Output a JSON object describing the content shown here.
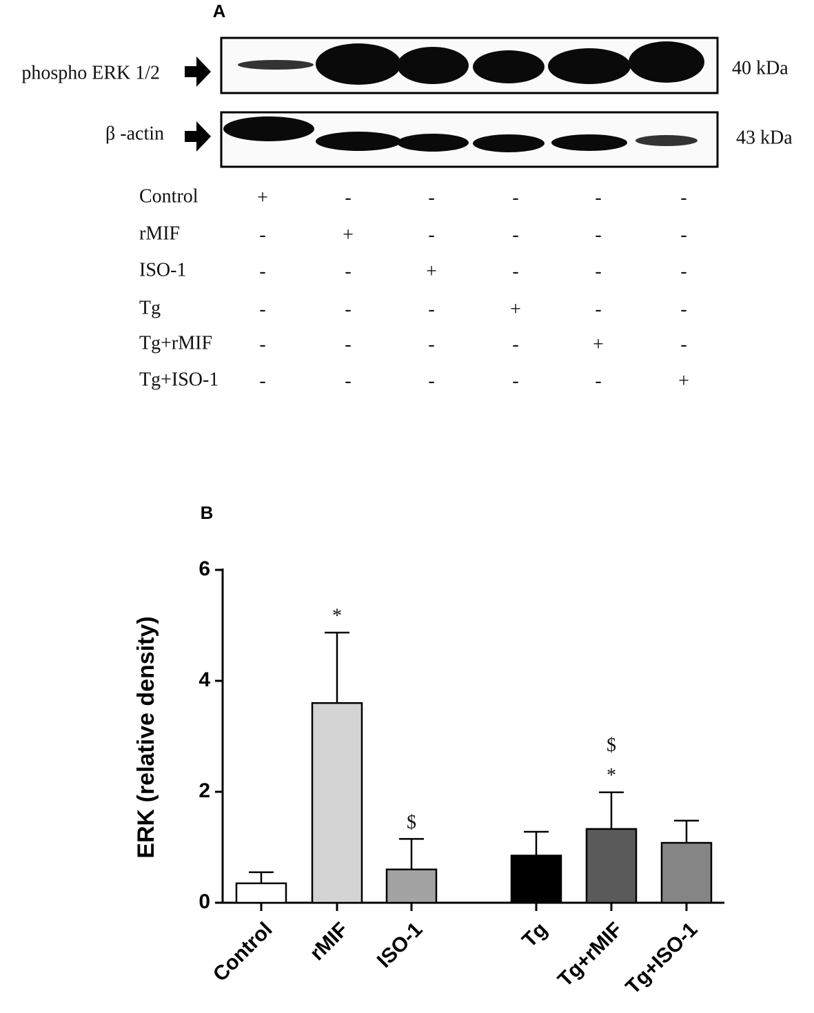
{
  "panel_a": {
    "label": "A",
    "blots": [
      {
        "name": "phospho ERK 1/2",
        "size": "40 kDa"
      },
      {
        "name": "β -actin",
        "size": "43 kDa"
      }
    ],
    "treatments": [
      {
        "name": "Control",
        "signs": [
          "+",
          "-",
          "-",
          "-",
          "-",
          "-"
        ]
      },
      {
        "name": "rMIF",
        "signs": [
          "-",
          "+",
          "-",
          "-",
          "-",
          "-"
        ]
      },
      {
        "name": "ISO-1",
        "signs": [
          "-",
          "-",
          "+",
          "-",
          "-",
          "-"
        ]
      },
      {
        "name": "Tg",
        "signs": [
          "-",
          "-",
          "-",
          "+",
          "-",
          "-"
        ]
      },
      {
        "name": "Tg+rMIF",
        "signs": [
          "-",
          "-",
          "-",
          "-",
          "+",
          "-"
        ]
      },
      {
        "name": "Tg+ISO-1",
        "signs": [
          "-",
          "-",
          "-",
          "-",
          "-",
          "+"
        ]
      }
    ]
  },
  "chart_data": {
    "type": "bar",
    "panel_label": "B",
    "ylabel": "ERK (relative density)",
    "categories": [
      "Control",
      "rMIF",
      "ISO-1",
      "Tg",
      "Tg+rMIF",
      "Tg+ISO-1"
    ],
    "values": [
      0.35,
      3.6,
      0.6,
      0.85,
      1.33,
      1.08
    ],
    "errors": [
      0.2,
      1.27,
      0.55,
      0.43,
      0.66,
      0.4
    ],
    "colors": [
      "#ffffff",
      "#d4d4d4",
      "#a3a3a3",
      "#000000",
      "#5a5a5a",
      "#858585"
    ],
    "annotations": [
      null,
      [
        "*"
      ],
      [
        "$"
      ],
      null,
      [
        "$",
        "*"
      ],
      null
    ],
    "ylim": [
      0,
      6
    ],
    "yticks": [
      0,
      2,
      4,
      6
    ]
  }
}
